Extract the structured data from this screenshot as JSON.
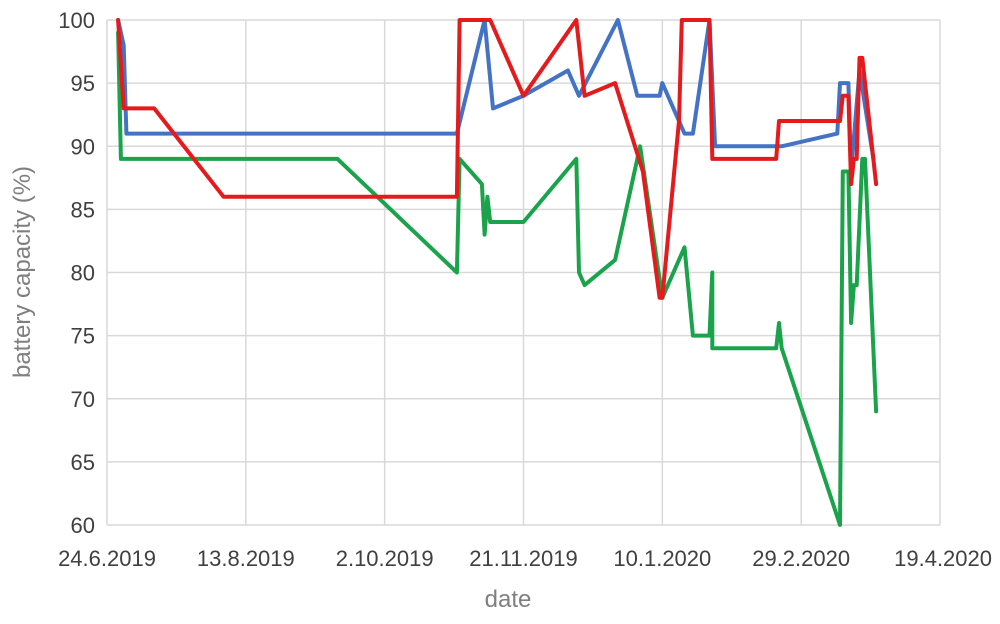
{
  "chart_data": {
    "type": "line",
    "title": "",
    "xlabel": "date",
    "ylabel": "battery capacity (%)",
    "ylim": [
      60,
      100
    ],
    "y_ticks": [
      60,
      65,
      70,
      75,
      80,
      85,
      90,
      95,
      100
    ],
    "x_ticks": [
      "24.6.2019",
      "13.8.2019",
      "2.10.2019",
      "21.11.2019",
      "10.1.2020",
      "29.2.2020",
      "19.4.2020"
    ],
    "xlim": [
      "2019-06-24",
      "2020-04-19"
    ],
    "grid": true,
    "legend": "none",
    "series": [
      {
        "color": "#4472c4",
        "points": [
          [
            "2019-06-28",
            100
          ],
          [
            "2019-06-30",
            98
          ],
          [
            "2019-07-01",
            91
          ],
          [
            "2019-10-28",
            91
          ],
          [
            "2019-11-07",
            100
          ],
          [
            "2019-11-10",
            93
          ],
          [
            "2019-11-21",
            94
          ],
          [
            "2019-12-07",
            96
          ],
          [
            "2019-12-11",
            94
          ],
          [
            "2019-12-25",
            100
          ],
          [
            "2020-01-01",
            94
          ],
          [
            "2020-01-09",
            94
          ],
          [
            "2020-01-10",
            95
          ],
          [
            "2020-01-18",
            91
          ],
          [
            "2020-01-21",
            91
          ],
          [
            "2020-01-27",
            100
          ],
          [
            "2020-01-29",
            90
          ],
          [
            "2020-02-18",
            90
          ],
          [
            "2020-02-22",
            90
          ],
          [
            "2020-03-13",
            91
          ],
          [
            "2020-03-14",
            95
          ],
          [
            "2020-03-17",
            95
          ],
          [
            "2020-03-18",
            88
          ],
          [
            "2020-03-21",
            96
          ],
          [
            "2020-03-26",
            89
          ]
        ]
      },
      {
        "color": "#1aa34a",
        "points": [
          [
            "2019-06-28",
            99
          ],
          [
            "2019-06-29",
            89
          ],
          [
            "2019-09-15",
            89
          ],
          [
            "2019-10-28",
            80
          ],
          [
            "2019-10-29",
            89
          ],
          [
            "2019-11-06",
            87
          ],
          [
            "2019-11-07",
            83
          ],
          [
            "2019-11-08",
            86
          ],
          [
            "2019-11-09",
            84
          ],
          [
            "2019-11-21",
            84
          ],
          [
            "2019-12-10",
            89
          ],
          [
            "2019-12-11",
            80
          ],
          [
            "2019-12-13",
            79
          ],
          [
            "2019-12-24",
            81
          ],
          [
            "2020-01-02",
            90
          ],
          [
            "2020-01-10",
            78
          ],
          [
            "2020-01-18",
            82
          ],
          [
            "2020-01-21",
            75
          ],
          [
            "2020-01-27",
            75
          ],
          [
            "2020-01-28",
            80
          ],
          [
            "2020-01-28",
            74
          ],
          [
            "2020-02-20",
            74
          ],
          [
            "2020-02-21",
            76
          ],
          [
            "2020-02-22",
            74
          ],
          [
            "2020-03-14",
            60
          ],
          [
            "2020-03-15",
            88
          ],
          [
            "2020-03-17",
            88
          ],
          [
            "2020-03-18",
            76
          ],
          [
            "2020-03-19",
            79
          ],
          [
            "2020-03-20",
            79
          ],
          [
            "2020-03-22",
            89
          ],
          [
            "2020-03-23",
            89
          ],
          [
            "2020-03-27",
            69
          ]
        ]
      },
      {
        "color": "#e41a1c",
        "points": [
          [
            "2019-06-28",
            100
          ],
          [
            "2019-06-30",
            93
          ],
          [
            "2019-07-11",
            93
          ],
          [
            "2019-08-05",
            86
          ],
          [
            "2019-10-28",
            86
          ],
          [
            "2019-10-29",
            100
          ],
          [
            "2019-11-09",
            100
          ],
          [
            "2019-11-21",
            94
          ],
          [
            "2019-12-10",
            100
          ],
          [
            "2019-12-13",
            94
          ],
          [
            "2019-12-24",
            95
          ],
          [
            "2020-01-03",
            88
          ],
          [
            "2020-01-09",
            78
          ],
          [
            "2020-01-10",
            78
          ],
          [
            "2020-01-16",
            92
          ],
          [
            "2020-01-17",
            100
          ],
          [
            "2020-01-27",
            100
          ],
          [
            "2020-01-28",
            89
          ],
          [
            "2020-02-20",
            89
          ],
          [
            "2020-02-21",
            92
          ],
          [
            "2020-03-14",
            92
          ],
          [
            "2020-03-15",
            94
          ],
          [
            "2020-03-17",
            94
          ],
          [
            "2020-03-18",
            87
          ],
          [
            "2020-03-19",
            89
          ],
          [
            "2020-03-20",
            89
          ],
          [
            "2020-03-21",
            97
          ],
          [
            "2020-03-22",
            97
          ],
          [
            "2020-03-27",
            87
          ]
        ]
      }
    ]
  }
}
